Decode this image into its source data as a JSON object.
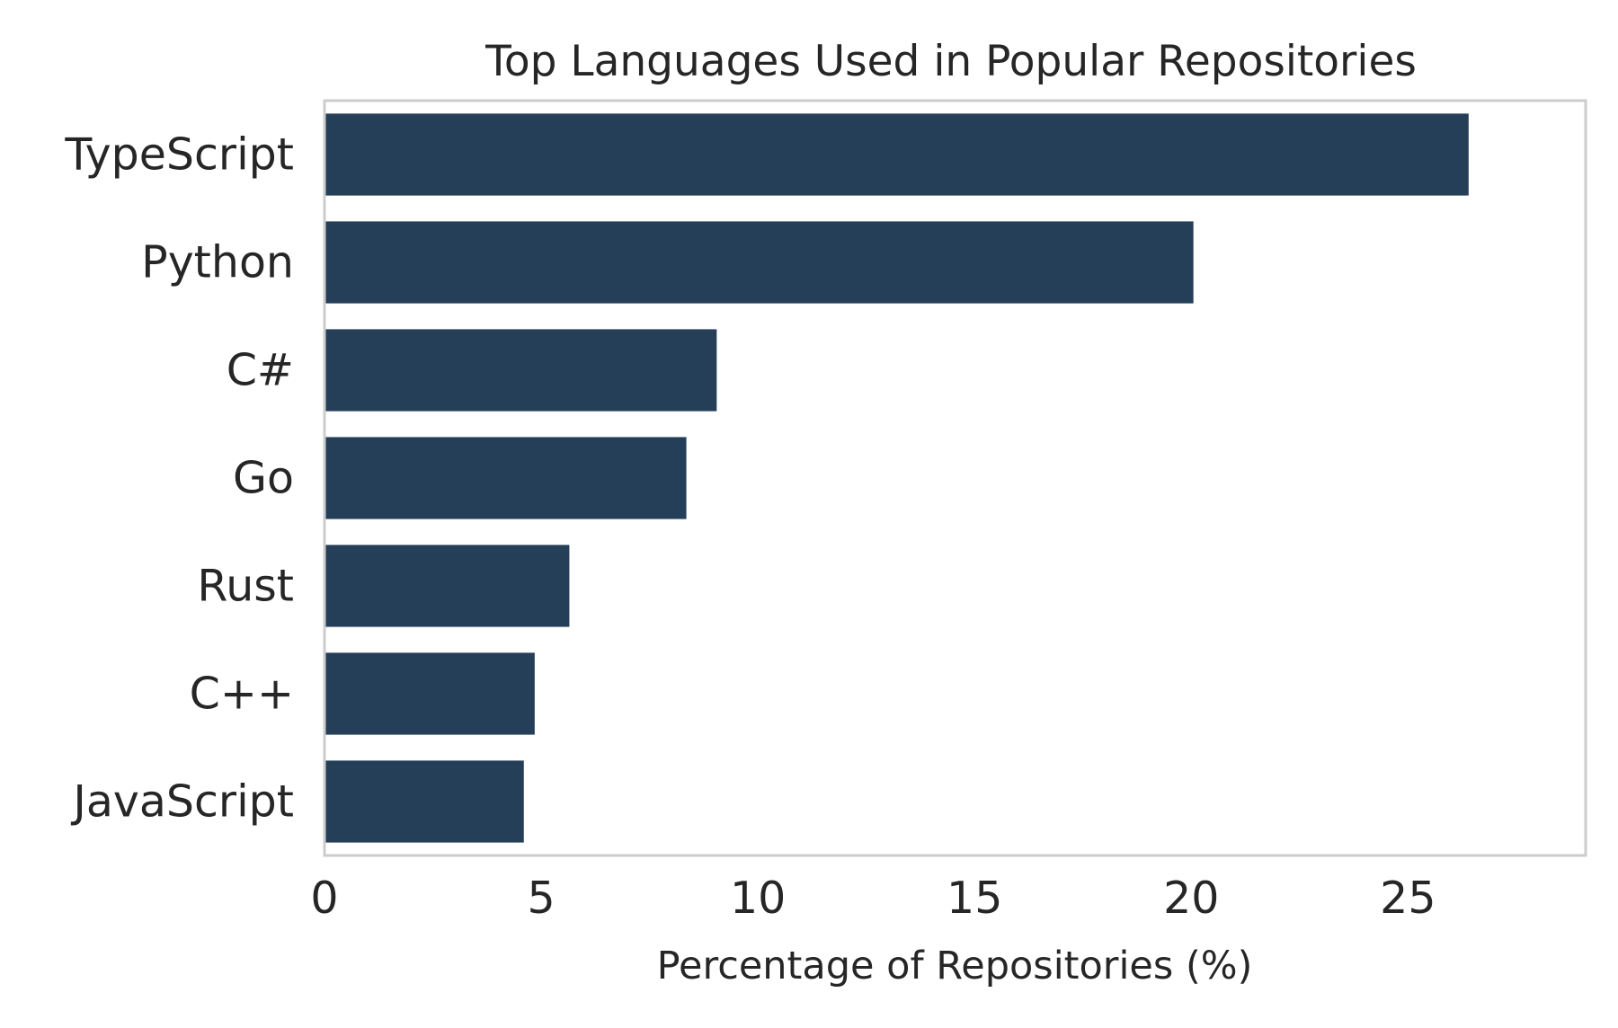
{
  "chart_data": {
    "type": "bar",
    "orientation": "horizontal",
    "title": "Top Languages Used in Popular Repositories",
    "xlabel": "Percentage of Repositories (%)",
    "ylabel": "",
    "categories": [
      "TypeScript",
      "Python",
      "C#",
      "Go",
      "Rust",
      "C++",
      "JavaScript"
    ],
    "values": [
      26.4,
      20.05,
      9.05,
      8.35,
      5.65,
      4.85,
      4.6
    ],
    "xlim": [
      0,
      29.1
    ],
    "xticks": [
      0,
      5,
      10,
      15,
      20,
      25
    ],
    "xtick_labels": [
      "0",
      "5",
      "10",
      "15",
      "20",
      "25"
    ],
    "grid": false,
    "legend": "none",
    "bar_color": "#263f59",
    "frame_color": "#cccccc",
    "text_color": "#262626"
  }
}
